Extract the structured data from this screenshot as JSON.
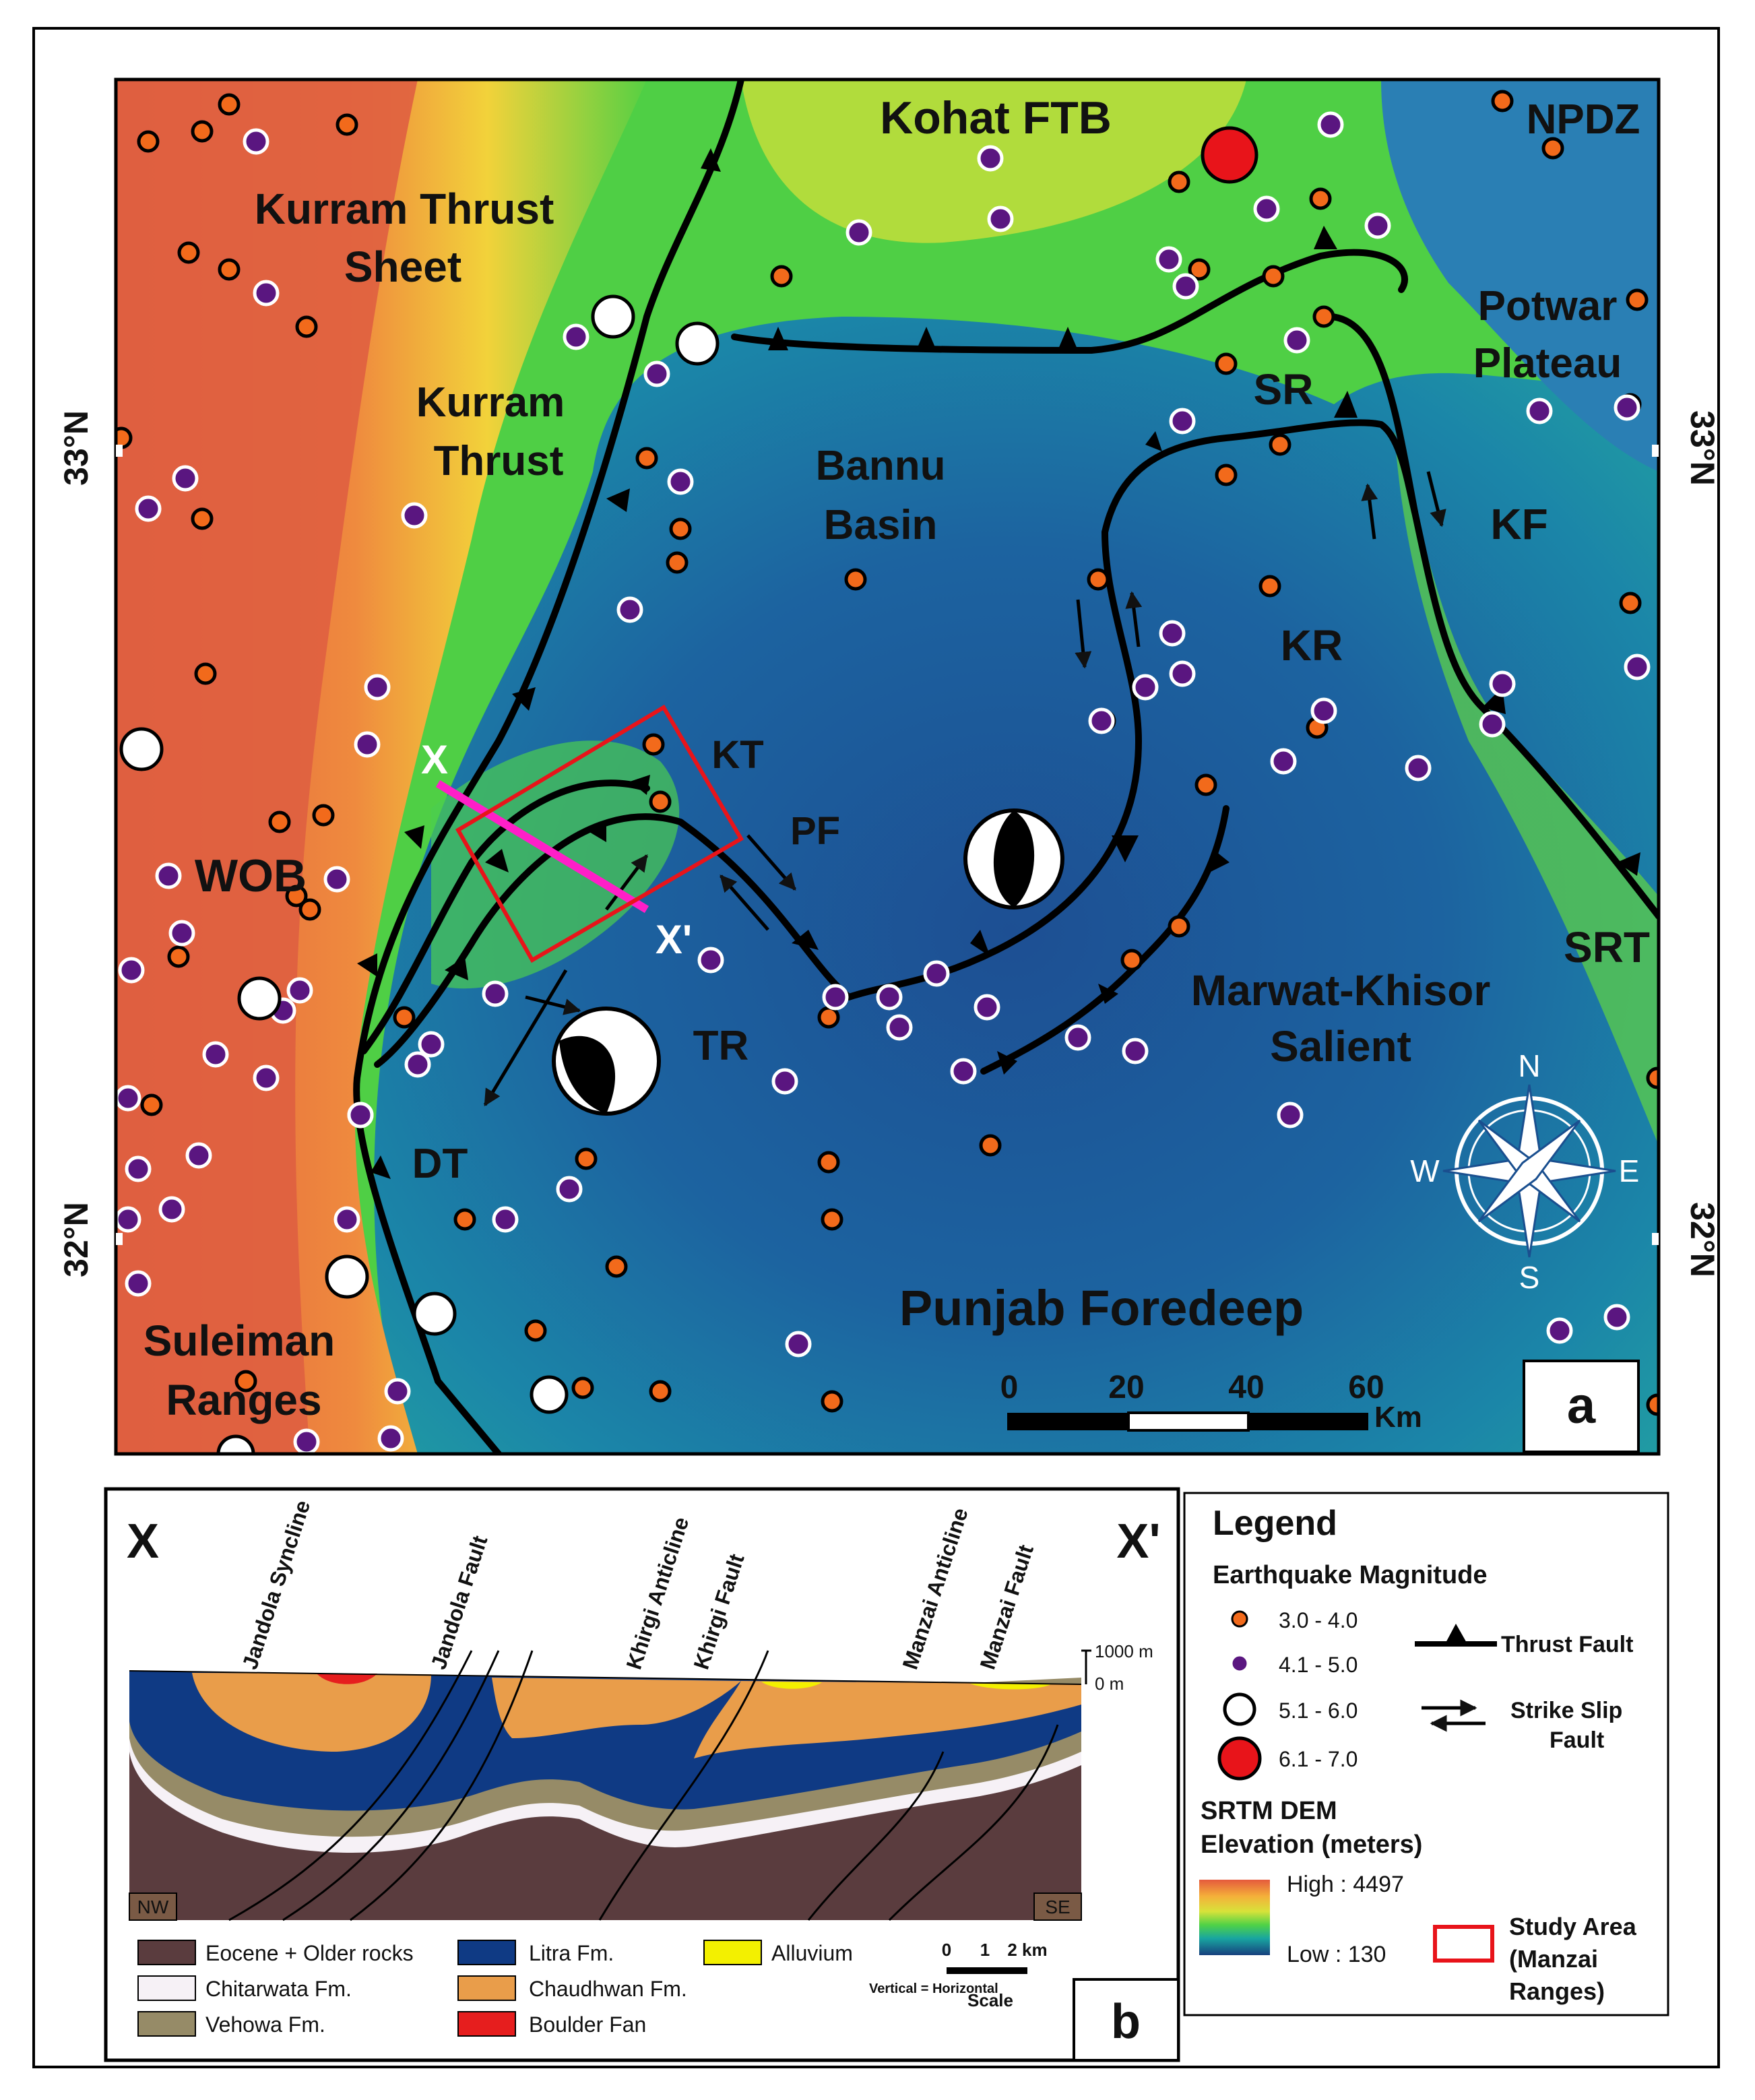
{
  "map_a": {
    "panel_label": "a",
    "region_labels": {
      "kohat": "Kohat FTB",
      "npdz": "NPDZ",
      "kurram_sheet_1": "Kurram Thrust",
      "kurram_sheet_2": "Sheet",
      "kurram_thrust_1": "Kurram",
      "kurram_thrust_2": "Thrust",
      "bannu_1": "Bannu",
      "bannu_2": "Basin",
      "potwar_1": "Potwar",
      "potwar_2": "Plateau",
      "sr": "SR",
      "kf": "KF",
      "kr": "KR",
      "kt": "KT",
      "pf": "PF",
      "wob": "WOB",
      "tr": "TR",
      "dt": "DT",
      "srt": "SRT",
      "marwat_1": "Marwat-Khisor",
      "marwat_2": "Salient",
      "punjab": "Punjab Foredeep",
      "suleiman_1": "Suleiman",
      "suleiman_2": "Ranges",
      "x": "X",
      "xp": "X'"
    },
    "lat_labels": {
      "top": "33°N",
      "bottom": "32°N"
    },
    "scale": {
      "ticks": [
        "0",
        "20",
        "40",
        "60"
      ],
      "unit": "Km"
    },
    "compass": {
      "n": "N",
      "s": "S",
      "e": "E",
      "w": "W"
    }
  },
  "section_b": {
    "panel_label": "b",
    "end_left": "X",
    "end_right": "X'",
    "corner_left": "NW",
    "corner_right": "SE",
    "structures": [
      "Jandola Syncline",
      "Jandola Fault",
      "Khirgi Anticline",
      "Khirgi Fault",
      "Manzai Anticline",
      "Manzai Fault"
    ],
    "elev_top": "1000 m",
    "elev_zero": "0 m",
    "units": [
      {
        "name": "Eocene + Older rocks",
        "color": "#5a3c3e"
      },
      {
        "name": "Chitarwata Fm.",
        "color": "#f6f1f6"
      },
      {
        "name": "Vehowa Fm.",
        "color": "#968b67"
      },
      {
        "name": "Litra Fm.",
        "color": "#0f3a84"
      },
      {
        "name": "Chaudhwan Fm.",
        "color": "#e99d4a"
      },
      {
        "name": "Boulder Fan",
        "color": "#e61e1e"
      },
      {
        "name": "Alluvium",
        "color": "#f3f000"
      }
    ],
    "scale": {
      "ticks": [
        "0",
        "1",
        "2 km"
      ],
      "note": "Vertical = Horizontal",
      "label": "Scale"
    }
  },
  "legend": {
    "title": "Legend",
    "eq_title": "Earthquake Magnitude",
    "eq_classes": [
      {
        "range": "3.0 - 4.0",
        "color": "#f26a1b"
      },
      {
        "range": "4.1 - 5.0",
        "color": "#5a1680"
      },
      {
        "range": "5.1 - 6.0",
        "color": "#ffffff"
      },
      {
        "range": "6.1 - 7.0",
        "color": "#e8141a"
      }
    ],
    "thrust": "Thrust Fault",
    "strike_slip_1": "Strike Slip",
    "strike_slip_2": "Fault",
    "dem_title_1": "SRTM DEM",
    "dem_title_2": "Elevation (meters)",
    "high": "High : 4497",
    "low": "Low : 130",
    "study_1": "Study Area",
    "study_2": "(Manzai",
    "study_3": "Ranges)"
  }
}
